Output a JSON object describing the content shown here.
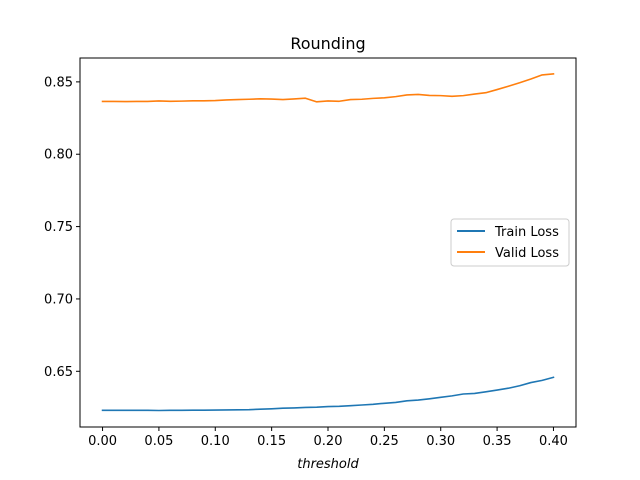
{
  "chart_data": {
    "type": "line",
    "title": "Rounding",
    "xlabel": "threshold",
    "ylabel": "",
    "xlim": [
      -0.02,
      0.42
    ],
    "ylim": [
      0.6115,
      0.8665
    ],
    "xticks": [
      0.0,
      0.05,
      0.1,
      0.15,
      0.2,
      0.25,
      0.3,
      0.35,
      0.4
    ],
    "xtick_labels": [
      "0.00",
      "0.05",
      "0.10",
      "0.15",
      "0.20",
      "0.25",
      "0.30",
      "0.35",
      "0.40"
    ],
    "yticks": [
      0.65,
      0.7,
      0.75,
      0.8,
      0.85
    ],
    "ytick_labels": [
      "0.65",
      "0.70",
      "0.75",
      "0.80",
      "0.85"
    ],
    "grid": false,
    "legend": "center-right",
    "x": [
      0.0,
      0.01,
      0.02,
      0.03,
      0.04,
      0.05,
      0.06,
      0.07,
      0.08,
      0.09,
      0.1,
      0.11,
      0.12,
      0.13,
      0.14,
      0.15,
      0.16,
      0.17,
      0.18,
      0.19,
      0.2,
      0.21,
      0.22,
      0.23,
      0.24,
      0.25,
      0.26,
      0.27,
      0.28,
      0.29,
      0.3,
      0.31,
      0.32,
      0.33,
      0.34,
      0.35,
      0.36,
      0.37,
      0.38,
      0.39,
      0.4
    ],
    "series": [
      {
        "name": "Train Loss",
        "color": "#1f77b4",
        "values": [
          0.623,
          0.623,
          0.623,
          0.623,
          0.623,
          0.6229,
          0.623,
          0.623,
          0.6231,
          0.6231,
          0.6232,
          0.6233,
          0.6234,
          0.6235,
          0.6238,
          0.6241,
          0.6245,
          0.6247,
          0.625,
          0.6252,
          0.6256,
          0.6258,
          0.6262,
          0.6267,
          0.6272,
          0.6279,
          0.6285,
          0.6296,
          0.6301,
          0.631,
          0.632,
          0.633,
          0.6343,
          0.6347,
          0.6358,
          0.637,
          0.6383,
          0.64,
          0.6422,
          0.6437,
          0.6458
        ]
      },
      {
        "name": "Valid Loss",
        "color": "#ff7f0e",
        "values": [
          0.8365,
          0.8365,
          0.8364,
          0.8365,
          0.8365,
          0.8368,
          0.8366,
          0.8367,
          0.8369,
          0.8369,
          0.8371,
          0.8375,
          0.8378,
          0.838,
          0.8383,
          0.8381,
          0.8378,
          0.8382,
          0.8387,
          0.8362,
          0.8368,
          0.8366,
          0.8378,
          0.838,
          0.8386,
          0.839,
          0.8398,
          0.841,
          0.8413,
          0.8406,
          0.8405,
          0.84,
          0.8405,
          0.8416,
          0.8425,
          0.8447,
          0.847,
          0.8494,
          0.852,
          0.8548,
          0.8555
        ]
      }
    ]
  }
}
